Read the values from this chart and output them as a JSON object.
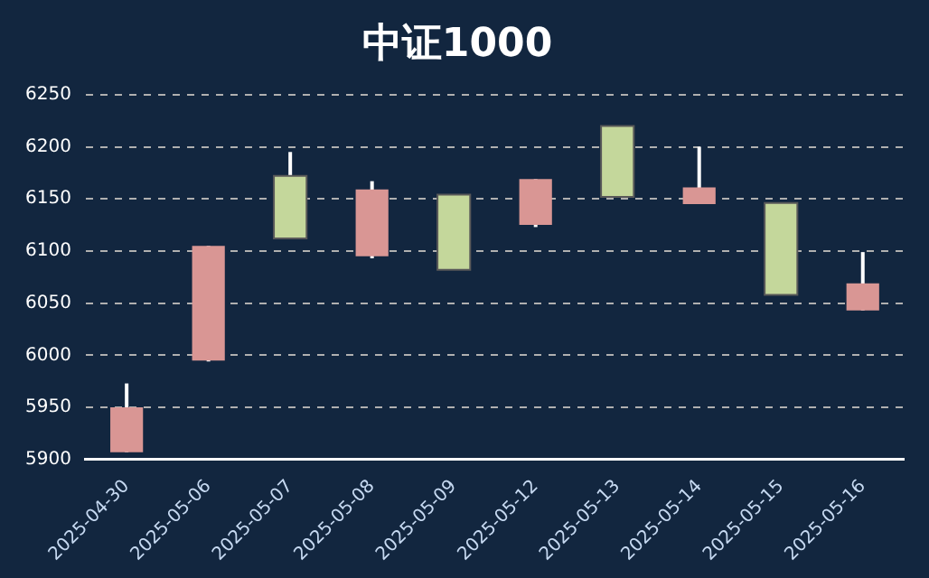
{
  "chart_data": {
    "type": "candlestick",
    "title": "中证1000",
    "categories": [
      "2025-04-30",
      "2025-05-06",
      "2025-05-07",
      "2025-05-08",
      "2025-05-09",
      "2025-05-12",
      "2025-05-13",
      "2025-05-14",
      "2025-05-15",
      "2025-05-16"
    ],
    "ohlc": [
      [
        5907,
        5973,
        5907,
        5950
      ],
      [
        5995,
        6105,
        5994,
        6105
      ],
      [
        6172,
        6195,
        6112,
        6112
      ],
      [
        6095,
        6167,
        6093,
        6159
      ],
      [
        6154,
        6154,
        6082,
        6082
      ],
      [
        6125,
        6169,
        6123,
        6169
      ],
      [
        6220,
        6220,
        6152,
        6152
      ],
      [
        6145,
        6200,
        6145,
        6161
      ],
      [
        6146,
        6146,
        6058,
        6058
      ],
      [
        6043,
        6099,
        6043,
        6069
      ]
    ],
    "colors": [
      "#d99694",
      "#d99694",
      "#c4d79b",
      "#d99694",
      "#c4d79b",
      "#d99694",
      "#c4d79b",
      "#d99694",
      "#c4d79b",
      "#d99694"
    ],
    "ylim": [
      5900,
      6250
    ],
    "yticks": [
      5900,
      5950,
      6000,
      6050,
      6100,
      6150,
      6200,
      6250
    ],
    "grid": "y"
  }
}
